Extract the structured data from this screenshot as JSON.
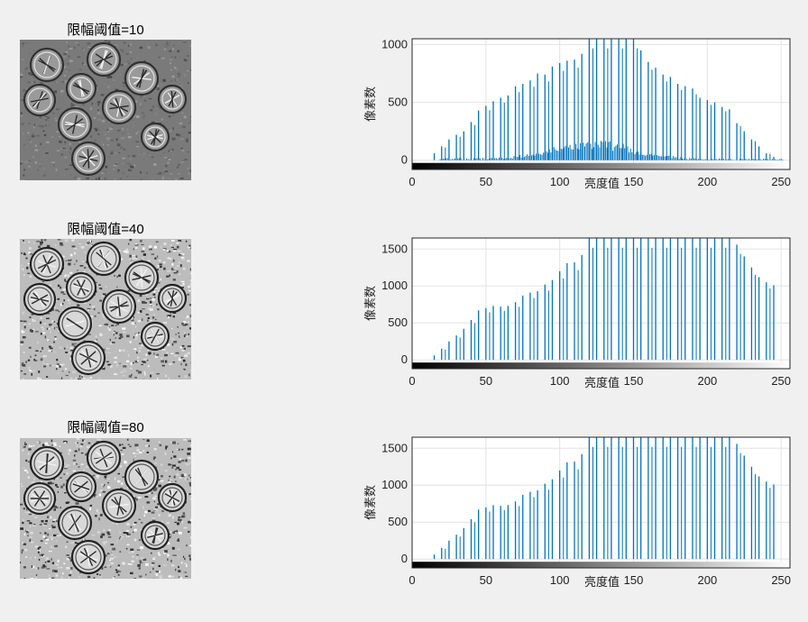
{
  "panels": [
    {
      "title": "限幅阈值=10",
      "image_style": "gray-low-contrast",
      "chart_data": {
        "type": "bar",
        "xlabel": "亮度值",
        "ylabel": "像素数",
        "xlim": [
          0,
          256
        ],
        "ylim": [
          -80,
          1050
        ],
        "xticks": [
          0,
          50,
          100,
          150,
          200,
          250
        ],
        "yticks": [
          0,
          500,
          1000
        ],
        "color": "#0072BD",
        "grid": true,
        "colorbar": "grayscale",
        "spikes": {
          "x": [
            15,
            20,
            25,
            30,
            35,
            40,
            45,
            50,
            55,
            60,
            65,
            70,
            75,
            80,
            85,
            90,
            95,
            100,
            105,
            110,
            115,
            120,
            125,
            130,
            135,
            140,
            145,
            150,
            155,
            160,
            165,
            170,
            175,
            180,
            185,
            190,
            195,
            200,
            205,
            210,
            215,
            220,
            225,
            230,
            235,
            240,
            245
          ],
          "y": [
            60,
            120,
            180,
            220,
            250,
            330,
            430,
            470,
            510,
            540,
            560,
            640,
            660,
            690,
            750,
            740,
            810,
            840,
            860,
            870,
            920,
            1050,
            1050,
            1050,
            1050,
            1050,
            1050,
            1050,
            950,
            850,
            800,
            740,
            720,
            660,
            640,
            620,
            540,
            520,
            500,
            460,
            440,
            320,
            250,
            180,
            120,
            60,
            30
          ]
        },
        "dense_peak": 145,
        "dense_center": 125
      }
    },
    {
      "title": "限幅阈值=40",
      "image_style": "gray-high-contrast",
      "chart_data": {
        "type": "bar",
        "xlabel": "亮度值",
        "ylabel": "像素数",
        "xlim": [
          0,
          256
        ],
        "ylim": [
          -120,
          1650
        ],
        "xticks": [
          0,
          50,
          100,
          150,
          200,
          250
        ],
        "yticks": [
          0,
          500,
          1000,
          1500
        ],
        "color": "#0072BD",
        "grid": true,
        "colorbar": "grayscale",
        "spikes": {
          "x": [
            15,
            20,
            25,
            30,
            35,
            40,
            45,
            50,
            55,
            60,
            65,
            70,
            75,
            80,
            85,
            90,
            95,
            100,
            105,
            110,
            115,
            120,
            125,
            130,
            135,
            140,
            145,
            150,
            155,
            160,
            165,
            170,
            175,
            180,
            185,
            190,
            195,
            200,
            205,
            210,
            215,
            220,
            225,
            230,
            235,
            240,
            245
          ],
          "y": [
            60,
            150,
            250,
            330,
            420,
            540,
            670,
            700,
            730,
            720,
            730,
            780,
            870,
            910,
            930,
            1020,
            1080,
            1200,
            1310,
            1320,
            1420,
            1650,
            1650,
            1650,
            1650,
            1650,
            1650,
            1650,
            1650,
            1650,
            1650,
            1650,
            1650,
            1650,
            1650,
            1650,
            1650,
            1650,
            1650,
            1650,
            1650,
            1560,
            1400,
            1250,
            1120,
            1050,
            1010
          ]
        },
        "dense_peak": 0,
        "dense_center": 0
      }
    },
    {
      "title": "限幅阈值=80",
      "image_style": "gray-high-contrast",
      "chart_data": {
        "type": "bar",
        "xlabel": "亮度值",
        "ylabel": "像素数",
        "xlim": [
          0,
          256
        ],
        "ylim": [
          -120,
          1650
        ],
        "xticks": [
          0,
          50,
          100,
          150,
          200,
          250
        ],
        "yticks": [
          0,
          500,
          1000,
          1500
        ],
        "color": "#0072BD",
        "grid": true,
        "colorbar": "grayscale",
        "spikes": {
          "x": [
            15,
            20,
            25,
            30,
            35,
            40,
            45,
            50,
            55,
            60,
            65,
            70,
            75,
            80,
            85,
            90,
            95,
            100,
            105,
            110,
            115,
            120,
            125,
            130,
            135,
            140,
            145,
            150,
            155,
            160,
            165,
            170,
            175,
            180,
            185,
            190,
            195,
            200,
            205,
            210,
            215,
            220,
            225,
            230,
            235,
            240,
            245
          ],
          "y": [
            60,
            150,
            250,
            330,
            420,
            540,
            670,
            700,
            730,
            720,
            730,
            780,
            870,
            910,
            930,
            1020,
            1080,
            1200,
            1310,
            1320,
            1420,
            1650,
            1650,
            1650,
            1650,
            1650,
            1650,
            1650,
            1650,
            1650,
            1650,
            1650,
            1650,
            1650,
            1650,
            1650,
            1650,
            1650,
            1650,
            1650,
            1650,
            1560,
            1400,
            1250,
            1120,
            1050,
            1010
          ]
        },
        "dense_peak": 0,
        "dense_center": 0
      }
    }
  ]
}
